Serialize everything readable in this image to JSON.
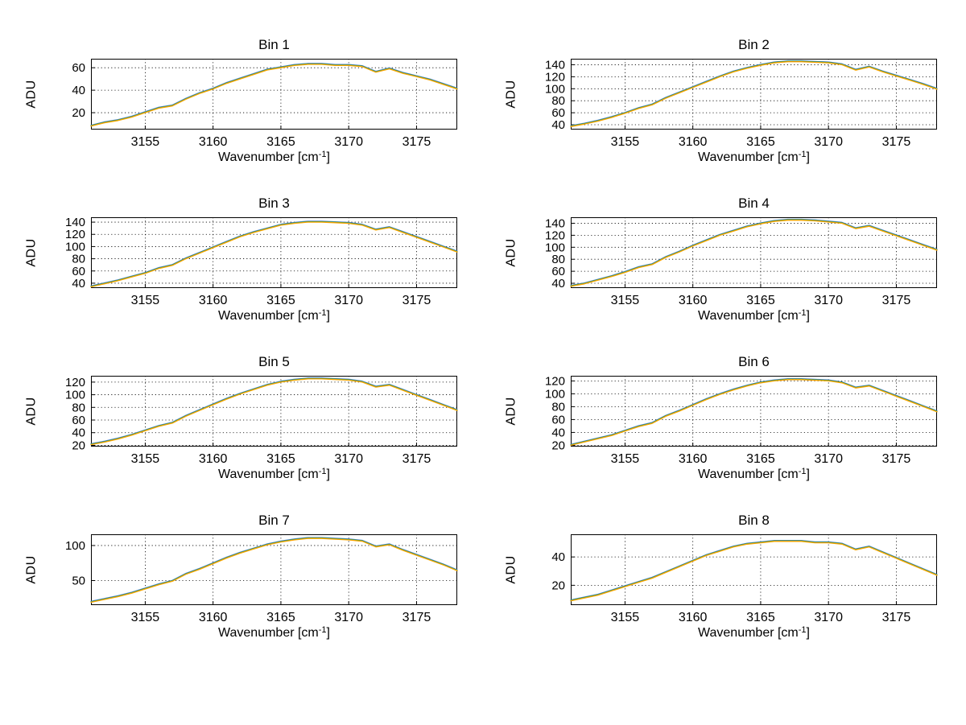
{
  "figure": {
    "background": "#ffffff"
  },
  "chart_data": {
    "type": "line",
    "layout": "grid-4x2",
    "grid": true,
    "ylabel": "ADU",
    "xlabel_main": "Wavenumber [cm",
    "xlabel_sup": "-1",
    "xlabel_close": "]",
    "line_colors": [
      "#4a7fd4",
      "#2e9e2e",
      "#ffa500"
    ],
    "grid_color": "#000000",
    "xlim": [
      3151,
      3178
    ],
    "xticks": [
      3155,
      3160,
      3165,
      3170,
      3175
    ],
    "x": [
      3151,
      3152,
      3153,
      3154,
      3155,
      3156,
      3157,
      3158,
      3159,
      3160,
      3161,
      3162,
      3163,
      3164,
      3165,
      3166,
      3167,
      3168,
      3169,
      3170,
      3171,
      3172,
      3173,
      3174,
      3175,
      3176,
      3177,
      3178
    ],
    "subplots": [
      {
        "title": "Bin 1",
        "yticks": [
          20,
          40,
          60
        ],
        "ylim": [
          5,
          68
        ],
        "values": [
          8,
          11,
          13,
          16,
          20,
          24,
          26,
          32,
          37,
          41,
          46,
          50,
          54,
          58,
          60,
          62,
          63,
          63,
          62,
          62,
          61,
          56,
          59,
          55,
          52,
          49,
          45,
          41
        ]
      },
      {
        "title": "Bin 2",
        "yticks": [
          40,
          60,
          80,
          100,
          120,
          140
        ],
        "ylim": [
          32,
          150
        ],
        "values": [
          37,
          41,
          46,
          52,
          59,
          67,
          73,
          84,
          93,
          102,
          111,
          120,
          128,
          134,
          139,
          143,
          145,
          145,
          144,
          143,
          140,
          131,
          136,
          128,
          121,
          114,
          107,
          99
        ]
      },
      {
        "title": "Bin 3",
        "yticks": [
          40,
          60,
          80,
          100,
          120,
          140
        ],
        "ylim": [
          32,
          148
        ],
        "values": [
          34,
          39,
          44,
          50,
          56,
          64,
          69,
          80,
          89,
          98,
          107,
          116,
          123,
          129,
          135,
          138,
          140,
          140,
          139,
          138,
          135,
          127,
          131,
          123,
          115,
          107,
          99,
          91
        ]
      },
      {
        "title": "Bin 4",
        "yticks": [
          40,
          60,
          80,
          100,
          120,
          140
        ],
        "ylim": [
          32,
          150
        ],
        "values": [
          35,
          39,
          45,
          51,
          58,
          66,
          71,
          83,
          92,
          102,
          111,
          120,
          127,
          134,
          139,
          143,
          145,
          145,
          144,
          142,
          140,
          131,
          135,
          127,
          119,
          111,
          103,
          95
        ]
      },
      {
        "title": "Bin 5",
        "yticks": [
          20,
          40,
          60,
          80,
          100,
          120
        ],
        "ylim": [
          18,
          130
        ],
        "values": [
          21,
          25,
          30,
          36,
          43,
          50,
          55,
          66,
          75,
          84,
          93,
          101,
          108,
          115,
          120,
          123,
          125,
          125,
          124,
          123,
          120,
          112,
          115,
          107,
          99,
          91,
          83,
          75
        ]
      },
      {
        "title": "Bin 6",
        "yticks": [
          20,
          40,
          60,
          80,
          100,
          120
        ],
        "ylim": [
          18,
          128
        ],
        "values": [
          20,
          25,
          30,
          35,
          42,
          49,
          54,
          65,
          73,
          82,
          91,
          99,
          106,
          112,
          117,
          120,
          122,
          122,
          121,
          120,
          117,
          109,
          112,
          104,
          96,
          88,
          80,
          72
        ]
      },
      {
        "title": "Bin 7",
        "yticks": [
          50,
          100
        ],
        "ylim": [
          15,
          116
        ],
        "values": [
          19,
          23,
          27,
          32,
          38,
          44,
          49,
          59,
          66,
          74,
          82,
          89,
          95,
          101,
          105,
          108,
          110,
          110,
          109,
          108,
          106,
          98,
          101,
          93,
          86,
          79,
          72,
          64
        ]
      },
      {
        "title": "Bin 8",
        "yticks": [
          20,
          40
        ],
        "ylim": [
          6,
          56
        ],
        "values": [
          9,
          11,
          13,
          16,
          19,
          22,
          25,
          29,
          33,
          37,
          41,
          44,
          47,
          49,
          50,
          51,
          51,
          51,
          50,
          50,
          49,
          45,
          47,
          43,
          39,
          35,
          31,
          27
        ]
      }
    ]
  }
}
